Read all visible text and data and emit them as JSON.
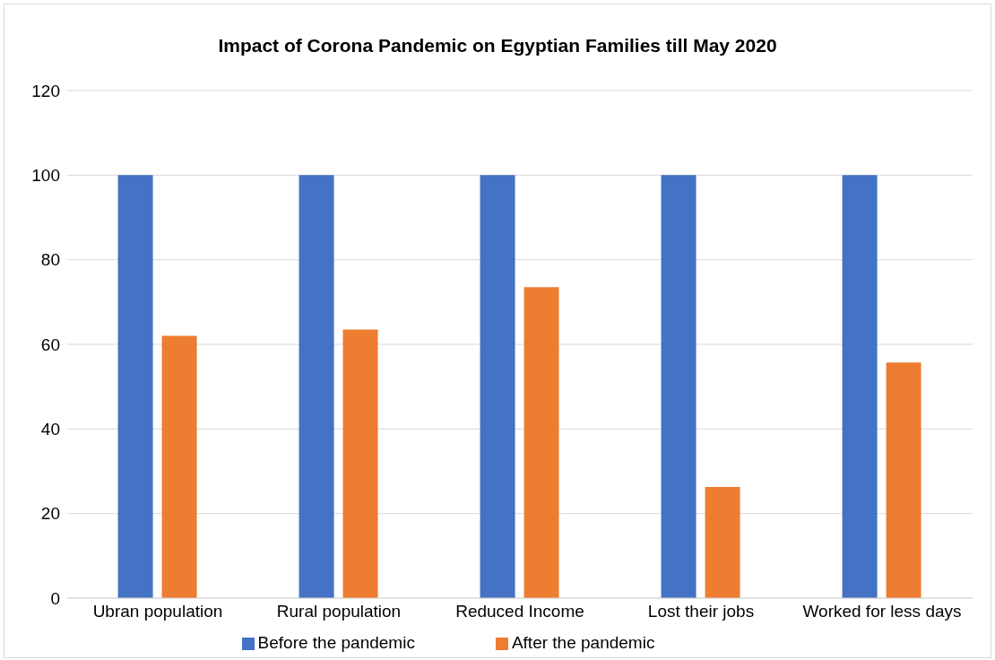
{
  "chart_data": {
    "type": "bar",
    "title": "Impact of Corona Pandemic on Egyptian Families till May 2020",
    "categories": [
      "Ubran population",
      "Rural population",
      "Reduced Income",
      "Lost their jobs",
      "Worked for less days"
    ],
    "series": [
      {
        "name": "Before the pandemic",
        "color": "#4472c4",
        "values": [
          100,
          100,
          100,
          100,
          100
        ]
      },
      {
        "name": "After the pandemic",
        "color": "#ed7d31",
        "values": [
          62,
          63.5,
          73.5,
          26.3,
          55.7
        ]
      }
    ],
    "ylim": [
      0,
      120
    ],
    "yticks": [
      0,
      20,
      40,
      60,
      80,
      100,
      120
    ],
    "grid": "y",
    "legend": "bottom"
  }
}
